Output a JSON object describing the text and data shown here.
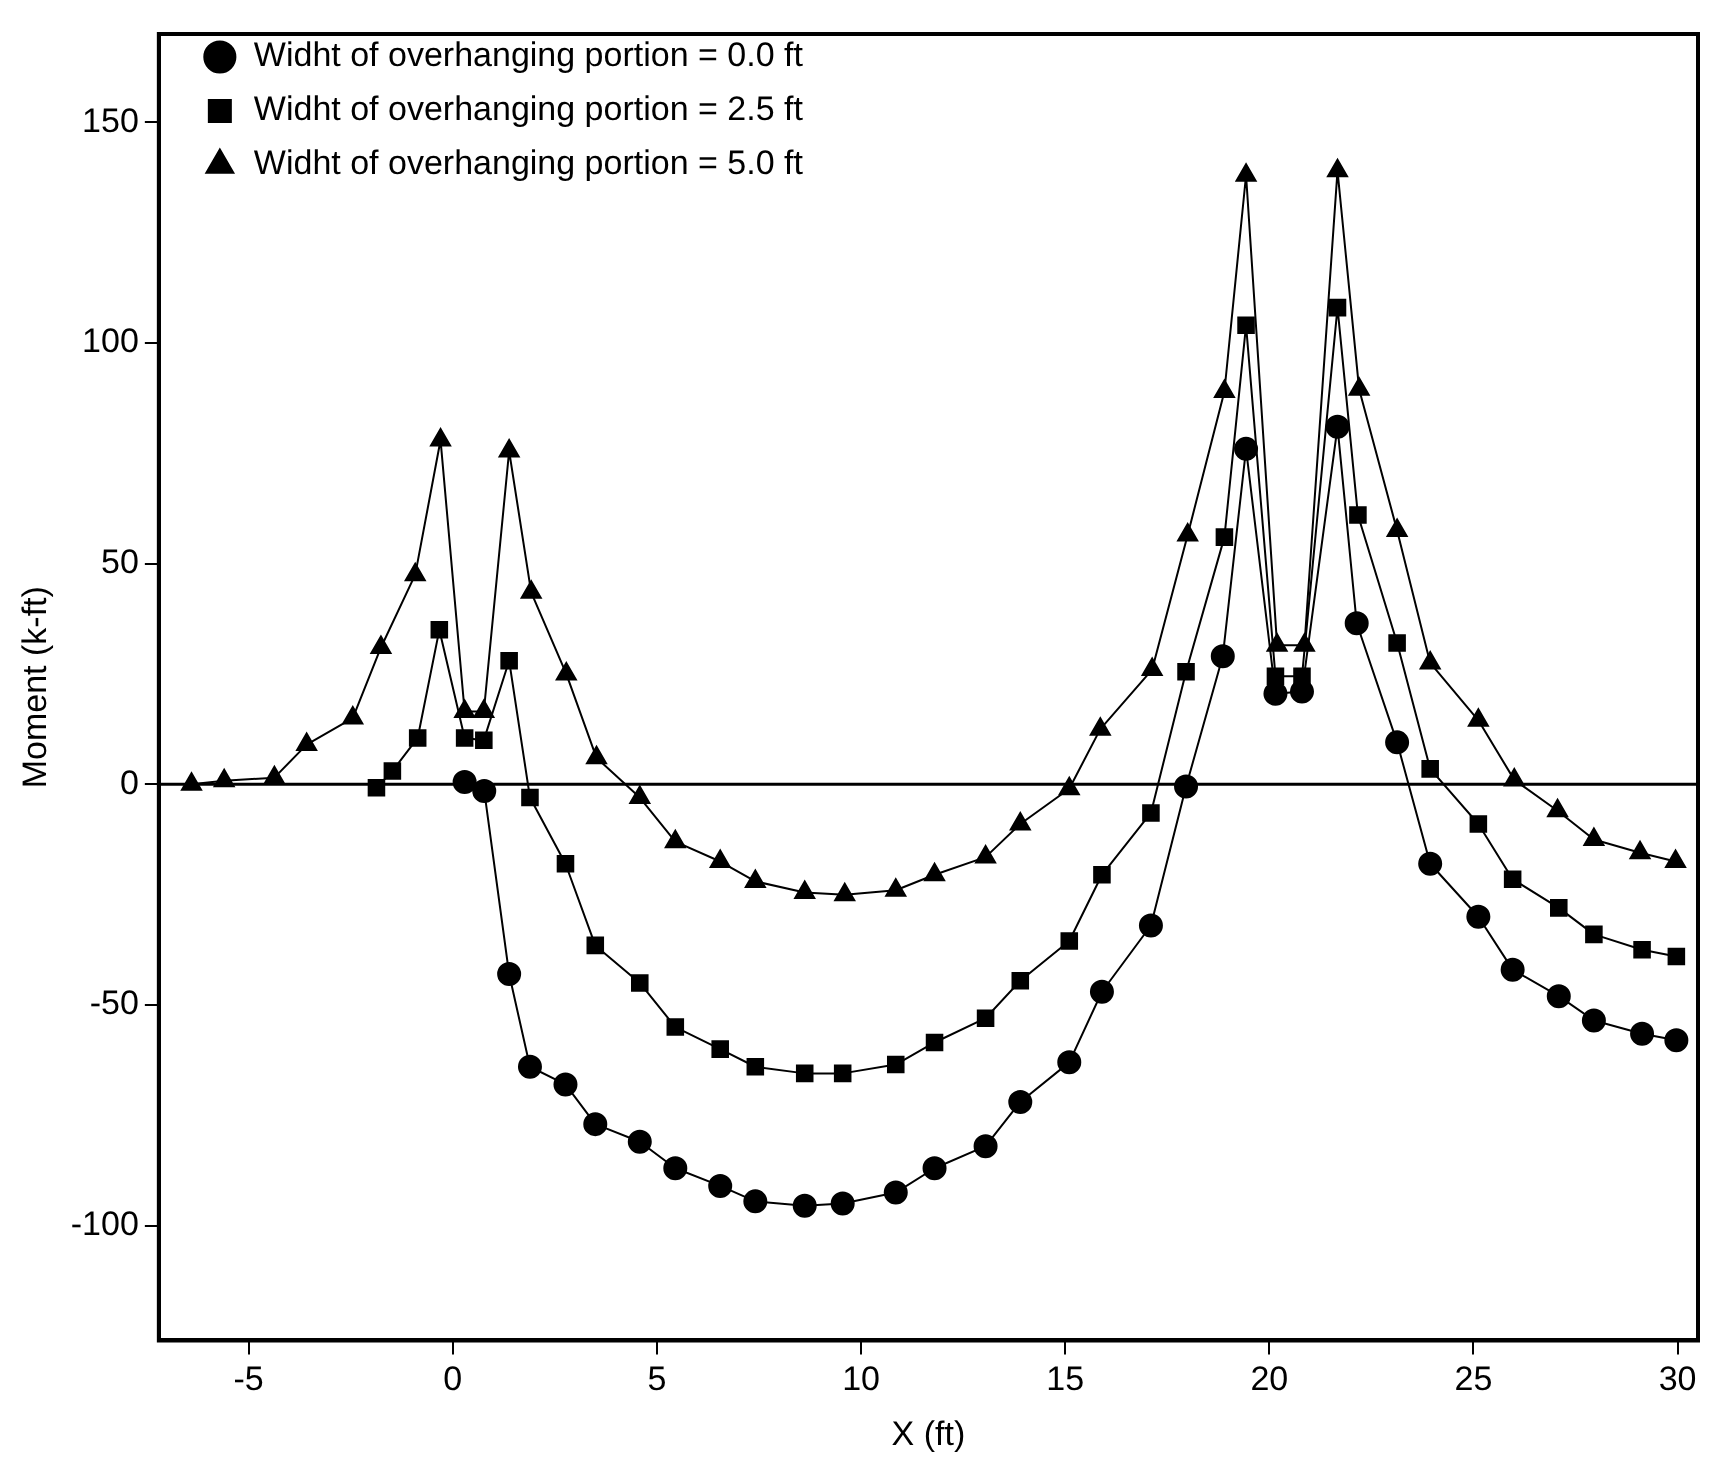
{
  "chart_data": {
    "type": "line",
    "xlabel": "X (ft)",
    "ylabel": "Moment (k-ft)",
    "xlim": [
      -7.2,
      30.5
    ],
    "ylim": [
      -126,
      170
    ],
    "xticks": [
      -5,
      0,
      5,
      10,
      15,
      20,
      25,
      30
    ],
    "yticks": [
      -100,
      -50,
      0,
      50,
      100,
      150
    ],
    "grid": false,
    "legend": "top left",
    "ref_lines": [
      {
        "axis": "y",
        "value": 0,
        "color": "#000000"
      }
    ],
    "series": [
      {
        "name": "Widht of overhanging portion = 0.0 ft",
        "color": "#000000",
        "marker": "circle",
        "x": [
          0.29,
          0.77,
          1.38,
          1.89,
          2.76,
          3.49,
          4.58,
          5.45,
          6.55,
          7.41,
          8.62,
          9.55,
          10.85,
          11.8,
          13.05,
          13.9,
          15.1,
          15.9,
          17.1,
          17.96,
          18.86,
          19.43,
          20.15,
          20.8,
          21.67,
          22.14,
          23.13,
          23.94,
          25.12,
          25.96,
          27.09,
          27.95,
          29.13,
          29.97
        ],
        "values": [
          0.5,
          -1.5,
          -43,
          -64,
          -68,
          -77,
          -81,
          -87,
          -91,
          -94.5,
          -95.5,
          -95,
          -92.5,
          -87,
          -82,
          -72,
          -63,
          -47,
          -32,
          -0.5,
          29,
          76,
          20.5,
          21,
          81,
          36.5,
          9.5,
          -18,
          -30,
          -42,
          -48,
          -53.5,
          -56.5,
          -58
        ]
      },
      {
        "name": "Widht of overhanging portion = 2.5 ft",
        "color": "#000000",
        "marker": "square",
        "x": [
          -1.87,
          -1.48,
          -0.86,
          -0.33,
          0.29,
          0.76,
          1.38,
          1.89,
          2.76,
          3.49,
          4.58,
          5.45,
          6.55,
          7.41,
          8.62,
          9.55,
          10.85,
          11.8,
          13.05,
          13.9,
          15.1,
          15.9,
          17.1,
          17.96,
          18.9,
          19.43,
          20.15,
          20.8,
          21.67,
          22.17,
          23.13,
          23.94,
          25.12,
          25.96,
          27.09,
          27.95,
          29.13,
          29.97
        ],
        "values": [
          -0.8,
          3,
          10.5,
          35,
          10.5,
          10,
          28,
          -3,
          -18,
          -36.5,
          -45,
          -55,
          -60,
          -64,
          -65.5,
          -65.5,
          -63.5,
          -58.5,
          -53,
          -44.5,
          -35.5,
          -20.5,
          -6.5,
          25.5,
          56,
          104,
          24.5,
          24.5,
          108,
          61,
          32,
          3.5,
          -9,
          -21.5,
          -28,
          -34,
          -37.5,
          -39
        ]
      },
      {
        "name": "Widht of overhanging portion = 5.0 ft",
        "color": "#000000",
        "marker": "triangle",
        "x": [
          -6.4,
          -5.6,
          -4.37,
          -3.58,
          -2.45,
          -1.76,
          -0.92,
          -0.3,
          0.29,
          0.76,
          1.38,
          1.92,
          2.78,
          3.52,
          4.58,
          5.45,
          6.55,
          7.41,
          8.62,
          9.6,
          10.85,
          11.8,
          13.05,
          13.9,
          15.1,
          15.86,
          17.13,
          18.0,
          18.9,
          19.43,
          20.19,
          20.86,
          21.67,
          22.2,
          23.13,
          23.94,
          25.12,
          26.0,
          27.06,
          27.95,
          29.08,
          29.95
        ],
        "values": [
          0,
          0.8,
          1.5,
          9,
          15,
          31,
          47.5,
          78,
          16.5,
          16.5,
          75.5,
          43.5,
          25,
          6,
          -3,
          -13,
          -17.5,
          -22,
          -24.5,
          -25,
          -24,
          -20.5,
          -16.5,
          -9,
          -1,
          12.5,
          26,
          56.5,
          89,
          138,
          31.5,
          31.5,
          139,
          89.5,
          57.5,
          27.5,
          14.5,
          1,
          -6,
          -12.5,
          -15.5,
          -17.5
        ]
      }
    ]
  }
}
